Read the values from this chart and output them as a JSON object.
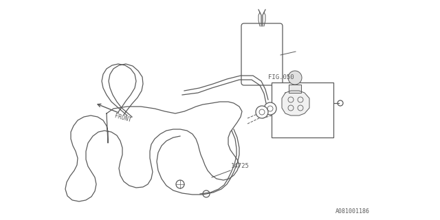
{
  "background_color": "#ffffff",
  "line_color": "#5a5a5a",
  "line_width": 0.9,
  "label_14725": "14725",
  "label_fig050": "FIG.050",
  "label_front": "FRONT",
  "label_code": "A081001186",
  "fig_size": [
    6.4,
    3.2
  ],
  "dpi": 100
}
